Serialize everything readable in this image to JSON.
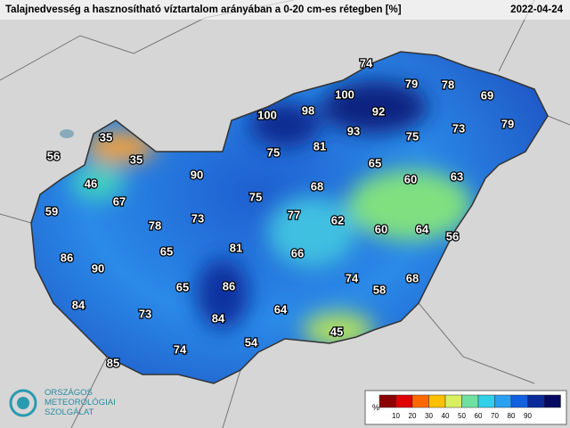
{
  "header": {
    "title": "Talajnedvesség a hasznosítható víztartalom arányában a 0-20 cm-es rétegben [%]",
    "date": "2022-04-24"
  },
  "stations": [
    74,
    79,
    78,
    69,
    100,
    98,
    92,
    79,
    73,
    100,
    81,
    93,
    75,
    35,
    75,
    65,
    56,
    35,
    63,
    90,
    46,
    60,
    68,
    67,
    75,
    59,
    77,
    62,
    60,
    64,
    78,
    73,
    56,
    86,
    81,
    65,
    66,
    90,
    74,
    58,
    68,
    84,
    65,
    86,
    73,
    64,
    84,
    45,
    54,
    74,
    85
  ],
  "legend": {
    "unit": "%",
    "ticks": [
      10,
      20,
      30,
      40,
      50,
      60,
      70,
      80,
      90
    ]
  },
  "logo": {
    "lines": [
      "ORSZÁGOS",
      "METEOROLÓGIAI",
      "SZOLGÁLAT"
    ]
  }
}
